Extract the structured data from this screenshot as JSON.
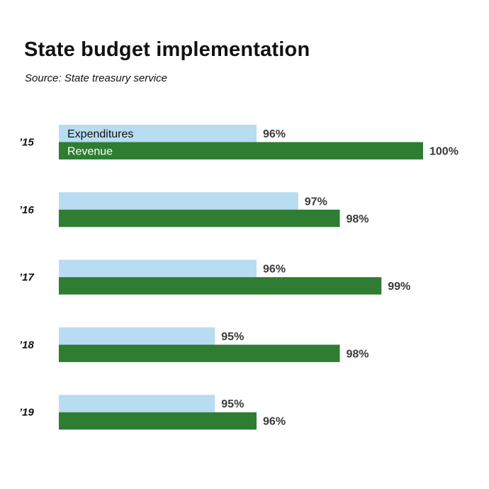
{
  "title": "State budget implementation",
  "subtitle": "Source: State treasury service",
  "colors": {
    "expenditures": "#b8dcf2",
    "revenue": "#2e7d32",
    "expenditures_label": "#111111",
    "revenue_label": "#ffffff"
  },
  "chart_data": {
    "type": "bar",
    "orientation": "horizontal",
    "categories": [
      "’15",
      "’16",
      "’17",
      "’18",
      "’19"
    ],
    "series": [
      {
        "name": "Expenditures",
        "values": [
          96,
          97,
          96,
          95,
          95
        ],
        "labels": [
          "96%",
          "97%",
          "96%",
          "95%",
          "95%"
        ]
      },
      {
        "name": "Revenue",
        "values": [
          100,
          98,
          99,
          98,
          96
        ],
        "labels": [
          "100%",
          "98%",
          "99%",
          "98%",
          "96%"
        ]
      }
    ],
    "xlim": [
      91.25,
      100
    ],
    "unit": "%",
    "legend": "inside first bars"
  }
}
